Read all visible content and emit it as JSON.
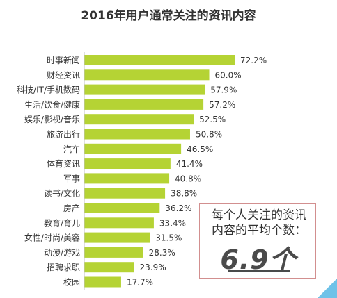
{
  "chart_data": {
    "type": "bar",
    "orientation": "horizontal",
    "title": "2016年用户通常关注的资讯内容",
    "categories": [
      "时事新闻",
      "财经资讯",
      "科技/IT/手机数码",
      "生活/饮食/健康",
      "娱乐/影视/音乐",
      "旅游出行",
      "汽车",
      "体育资讯",
      "军事",
      "读书/文化",
      "房产",
      "教育/育儿",
      "女性/时尚/美容",
      "动漫/游戏",
      "招聘求职",
      "校园"
    ],
    "values": [
      72.2,
      60.0,
      57.9,
      57.2,
      52.5,
      50.8,
      46.5,
      41.4,
      40.8,
      38.8,
      36.2,
      33.4,
      31.5,
      28.3,
      23.9,
      17.7
    ],
    "value_labels": [
      "72.2%",
      "60.0%",
      "57.9%",
      "57.2%",
      "52.5%",
      "50.8%",
      "46.5%",
      "41.4%",
      "40.8%",
      "38.8%",
      "36.2%",
      "33.4%",
      "31.5%",
      "28.3%",
      "23.9%",
      "17.7%"
    ],
    "xlim": [
      0,
      72.2
    ],
    "grid": false,
    "bar_color": "#b5d334"
  },
  "callout": {
    "text": "每个人关注的资讯内容的平均个数：",
    "number": "6.9个",
    "border_color": "#d28f8f"
  },
  "decoration": {
    "corner_color": "#6ec2e8"
  }
}
